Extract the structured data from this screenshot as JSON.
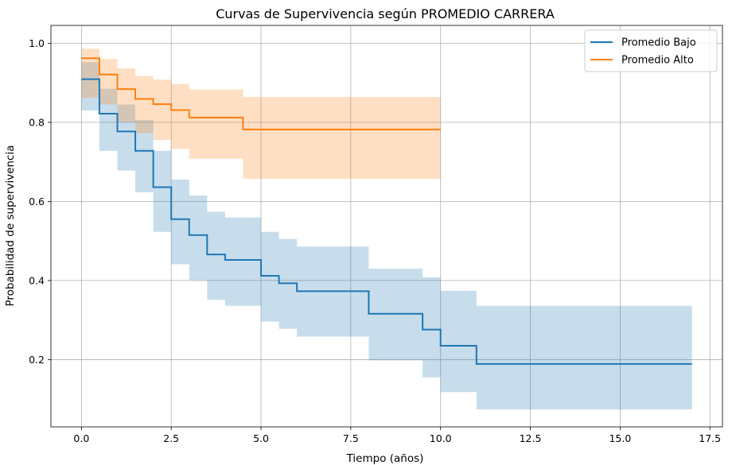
{
  "chart_data": {
    "type": "line",
    "style": "step",
    "title": "Curvas de Supervivencia según PROMEDIO CARRERA",
    "xlabel": "Tiempo (años)",
    "ylabel": "Probabilidad de supervivencia",
    "xlim": [
      -0.85,
      17.85
    ],
    "ylim": [
      0.03,
      1.045
    ],
    "xticks": [
      0.0,
      2.5,
      5.0,
      7.5,
      10.0,
      12.5,
      15.0,
      17.5
    ],
    "xtick_labels": [
      "0.0",
      "2.5",
      "5.0",
      "7.5",
      "10.0",
      "12.5",
      "15.0",
      "17.5"
    ],
    "yticks": [
      0.2,
      0.4,
      0.6,
      0.8,
      1.0
    ],
    "ytick_labels": [
      "0.2",
      "0.4",
      "0.6",
      "0.8",
      "1.0"
    ],
    "grid": true,
    "legend_position": "top-right",
    "series": [
      {
        "name": "Promedio Bajo",
        "color": "#1f77b4",
        "fill_color": "#1f77b4",
        "x": [
          0,
          0.5,
          1.0,
          1.5,
          2.0,
          2.5,
          3.0,
          3.5,
          4.0,
          5.0,
          5.5,
          6.0,
          8.0,
          9.5,
          10.0,
          11.0,
          17.0
        ],
        "y": [
          0.909,
          0.822,
          0.777,
          0.728,
          0.636,
          0.555,
          0.515,
          0.466,
          0.452,
          0.412,
          0.393,
          0.373,
          0.316,
          0.276,
          0.235,
          0.189,
          0.189
        ],
        "ci_lower": [
          0.83,
          0.728,
          0.678,
          0.623,
          0.523,
          0.441,
          0.401,
          0.351,
          0.336,
          0.296,
          0.278,
          0.258,
          0.198,
          0.155,
          0.118,
          0.074,
          0.074
        ],
        "ci_upper": [
          0.952,
          0.885,
          0.845,
          0.806,
          0.728,
          0.655,
          0.615,
          0.574,
          0.559,
          0.523,
          0.505,
          0.486,
          0.43,
          0.408,
          0.374,
          0.336,
          0.336
        ]
      },
      {
        "name": "Promedio Alto",
        "color": "#ff7f0e",
        "fill_color": "#ff7f0e",
        "x": [
          0,
          0.5,
          1.0,
          1.5,
          2.0,
          2.5,
          3.0,
          4.5,
          10.0
        ],
        "y": [
          0.962,
          0.921,
          0.884,
          0.859,
          0.846,
          0.831,
          0.812,
          0.782,
          0.782
        ],
        "ci_lower": [
          0.862,
          0.845,
          0.801,
          0.773,
          0.755,
          0.733,
          0.708,
          0.657,
          0.657
        ],
        "ci_upper": [
          0.986,
          0.96,
          0.936,
          0.917,
          0.908,
          0.897,
          0.883,
          0.864,
          0.864
        ]
      }
    ]
  }
}
